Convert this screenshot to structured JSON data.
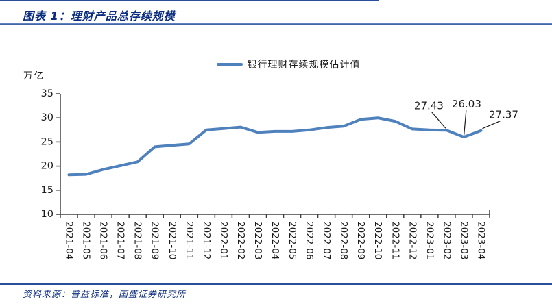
{
  "header": {
    "title": "图表 1：理财产品总存续规模"
  },
  "legend": {
    "label": "银行理财存续规模估计值"
  },
  "chart_data": {
    "type": "line",
    "title": "理财产品总存续规模",
    "unit_label": "万亿",
    "xlabel": "",
    "ylabel": "万亿",
    "ylim": [
      10,
      35
    ],
    "yticks": [
      10,
      15,
      20,
      25,
      30,
      35
    ],
    "grid": false,
    "legend_position": "top-center",
    "categories": [
      "2021-04",
      "2021-05",
      "2021-06",
      "2021-07",
      "2021-08",
      "2021-09",
      "2021-10",
      "2021-11",
      "2021-12",
      "2022-01",
      "2022-02",
      "2022-03",
      "2022-04",
      "2022-05",
      "2022-06",
      "2022-07",
      "2022-08",
      "2022-09",
      "2022-10",
      "2022-11",
      "2022-12",
      "2023-01",
      "2023-02",
      "2023-03",
      "2023-04"
    ],
    "series": [
      {
        "name": "银行理财存续规模估计值",
        "color": "#4f81bd",
        "values": [
          18.2,
          18.3,
          19.3,
          20.1,
          20.9,
          24.0,
          24.3,
          24.6,
          27.5,
          27.8,
          28.1,
          27.0,
          27.2,
          27.2,
          27.5,
          28.0,
          28.3,
          29.7,
          30.0,
          29.3,
          27.7,
          27.5,
          27.43,
          26.03,
          27.37
        ]
      }
    ],
    "annotations": [
      {
        "index": 22,
        "label": "27.43"
      },
      {
        "index": 23,
        "label": "26.03"
      },
      {
        "index": 24,
        "label": "27.37"
      }
    ]
  },
  "footer": {
    "source": "资料来源：普益标准，国盛证券研究所"
  },
  "colors": {
    "accent_rule": "#2a4e9a",
    "title_text": "#0a2c7e",
    "series_line": "#4f81bd",
    "axis": "#404040",
    "annotation_text": "#1a1a1a"
  }
}
